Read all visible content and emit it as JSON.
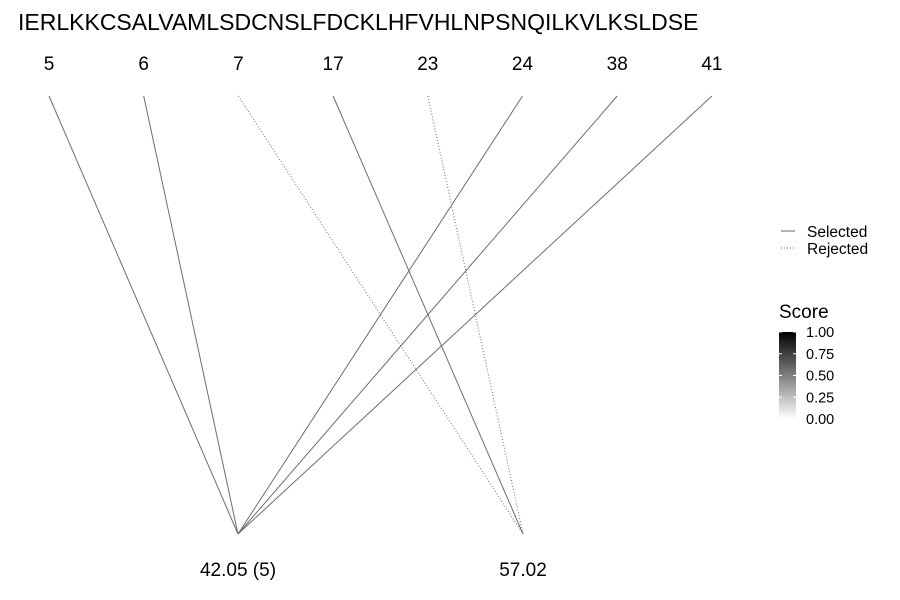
{
  "chart_data": {
    "type": "line",
    "sequence": "IERLKKCSALVAMLSDCNSLFDCKLHFVHLNPSNQILKVLKSLDSE",
    "positions": [
      5,
      6,
      7,
      17,
      23,
      24,
      38,
      41
    ],
    "nodes": [
      "42.05 (5)",
      "57.02"
    ],
    "connections": [
      {
        "position": 5,
        "node": "42.05 (5)",
        "status": "Selected"
      },
      {
        "position": 6,
        "node": "42.05 (5)",
        "status": "Selected"
      },
      {
        "position": 7,
        "node": "57.02",
        "status": "Rejected"
      },
      {
        "position": 17,
        "node": "57.02",
        "status": "Selected"
      },
      {
        "position": 23,
        "node": "57.02",
        "status": "Rejected"
      },
      {
        "position": 24,
        "node": "42.05 (5)",
        "status": "Selected"
      },
      {
        "position": 38,
        "node": "42.05 (5)",
        "status": "Selected"
      },
      {
        "position": 41,
        "node": "42.05 (5)",
        "status": "Selected"
      }
    ],
    "linetype_legend": {
      "entries": [
        "Selected",
        "Rejected"
      ],
      "placement": "right"
    },
    "color_legend": {
      "title": "Score",
      "ticks": [
        "1.00",
        "0.75",
        "0.50",
        "0.25",
        "0.00"
      ],
      "range": [
        0,
        1
      ],
      "low_color": "#ffffff",
      "high_color": "#000000",
      "placement": "right"
    },
    "line_color": "#6e6e6e",
    "grid": false
  }
}
